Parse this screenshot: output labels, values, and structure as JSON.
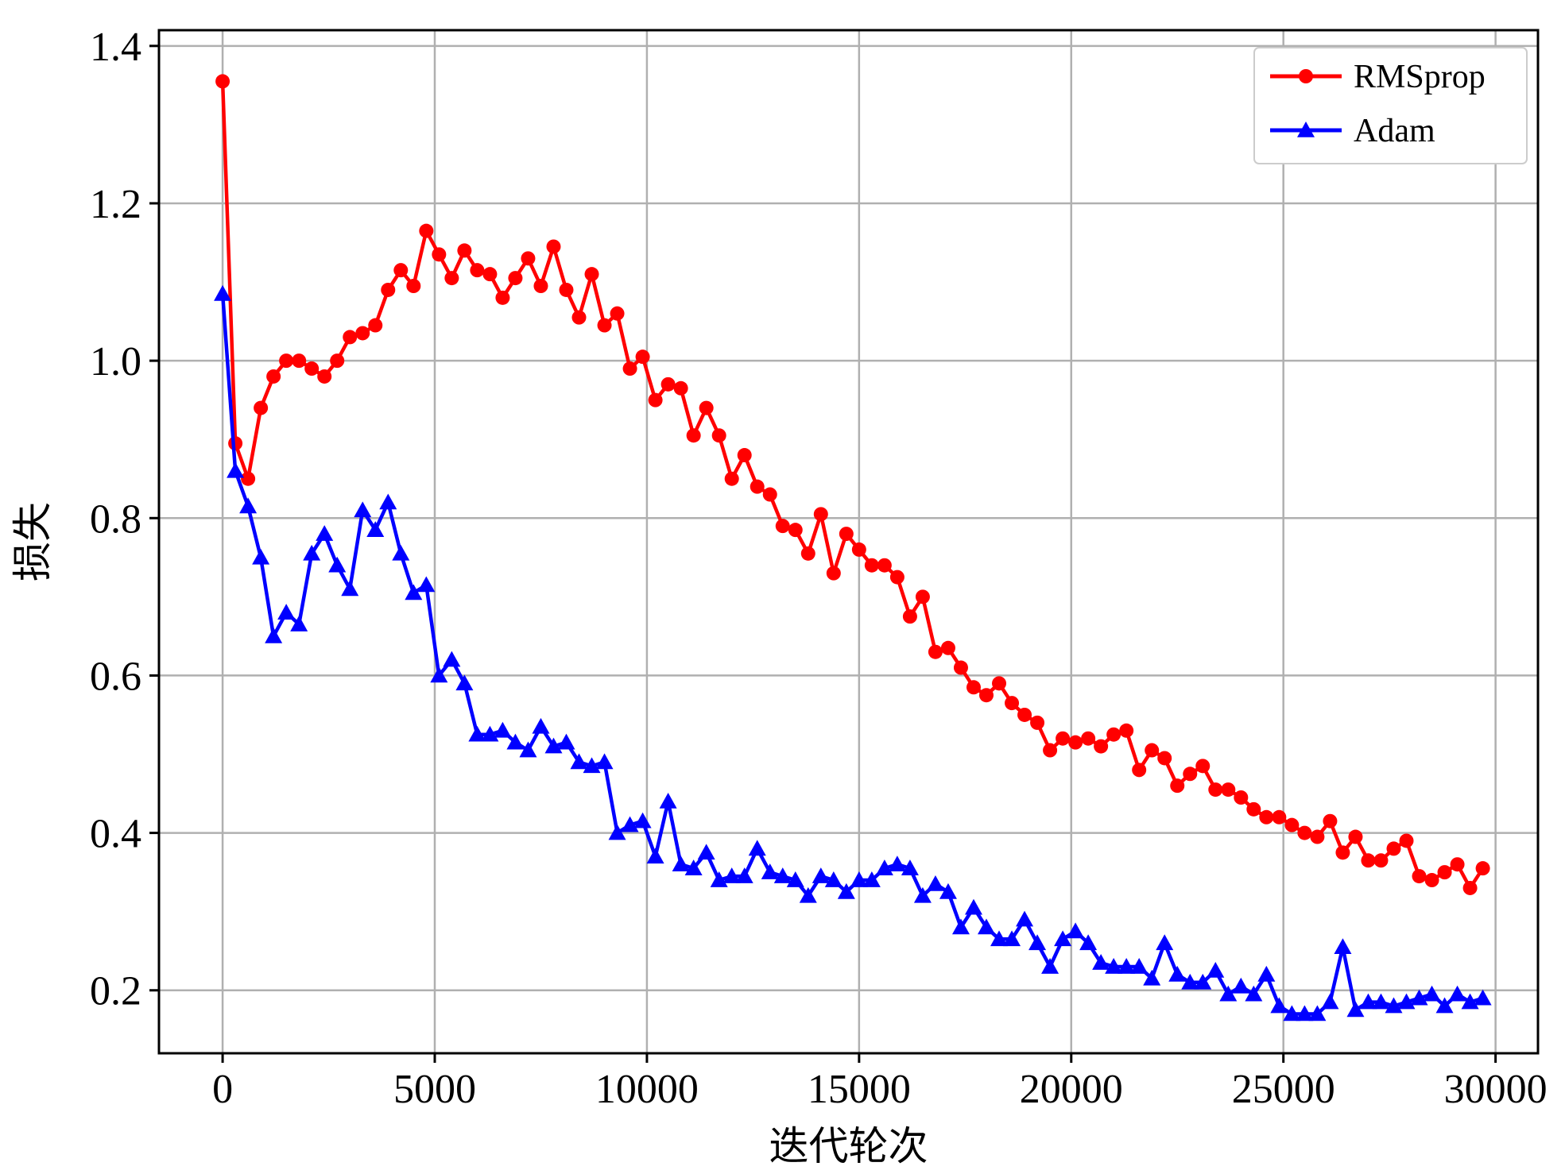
{
  "chart_data": {
    "type": "line",
    "title": "",
    "xlabel": "迭代轮次",
    "ylabel": "损失",
    "xlim": [
      -1500,
      31000
    ],
    "ylim": [
      0.12,
      1.42
    ],
    "xticks": [
      0,
      5000,
      10000,
      15000,
      20000,
      25000,
      30000
    ],
    "xtick_labels": [
      "0",
      "5000",
      "10000",
      "15000",
      "20000",
      "25000",
      "30000"
    ],
    "yticks": [
      0.2,
      0.4,
      0.6,
      0.8,
      1.0,
      1.2,
      1.4
    ],
    "ytick_labels": [
      "0.2",
      "0.4",
      "0.6",
      "0.8",
      "1.0",
      "1.2",
      "1.4"
    ],
    "grid": true,
    "legend_position": "top-right",
    "series": [
      {
        "name": "RMSprop",
        "color": "#ff0000",
        "marker": "circle",
        "points": [
          [
            0,
            1.355
          ],
          [
            300,
            0.895
          ],
          [
            600,
            0.85
          ],
          [
            900,
            0.94
          ],
          [
            1200,
            0.98
          ],
          [
            1500,
            1.0
          ],
          [
            1800,
            1.0
          ],
          [
            2100,
            0.99
          ],
          [
            2400,
            0.98
          ],
          [
            2700,
            1.0
          ],
          [
            3000,
            1.03
          ],
          [
            3300,
            1.035
          ],
          [
            3600,
            1.045
          ],
          [
            3900,
            1.09
          ],
          [
            4200,
            1.115
          ],
          [
            4500,
            1.095
          ],
          [
            4800,
            1.165
          ],
          [
            5100,
            1.135
          ],
          [
            5400,
            1.105
          ],
          [
            5700,
            1.14
          ],
          [
            6000,
            1.115
          ],
          [
            6300,
            1.11
          ],
          [
            6600,
            1.08
          ],
          [
            6900,
            1.105
          ],
          [
            7200,
            1.13
          ],
          [
            7500,
            1.095
          ],
          [
            7800,
            1.145
          ],
          [
            8100,
            1.09
          ],
          [
            8400,
            1.055
          ],
          [
            8700,
            1.11
          ],
          [
            9000,
            1.045
          ],
          [
            9300,
            1.06
          ],
          [
            9600,
            0.99
          ],
          [
            9900,
            1.005
          ],
          [
            10200,
            0.95
          ],
          [
            10500,
            0.97
          ],
          [
            10800,
            0.965
          ],
          [
            11100,
            0.905
          ],
          [
            11400,
            0.94
          ],
          [
            11700,
            0.905
          ],
          [
            12000,
            0.85
          ],
          [
            12300,
            0.88
          ],
          [
            12600,
            0.84
          ],
          [
            12900,
            0.83
          ],
          [
            13200,
            0.79
          ],
          [
            13500,
            0.785
          ],
          [
            13800,
            0.755
          ],
          [
            14100,
            0.805
          ],
          [
            14400,
            0.73
          ],
          [
            14700,
            0.78
          ],
          [
            15000,
            0.76
          ],
          [
            15300,
            0.74
          ],
          [
            15600,
            0.74
          ],
          [
            15900,
            0.725
          ],
          [
            16200,
            0.675
          ],
          [
            16500,
            0.7
          ],
          [
            16800,
            0.63
          ],
          [
            17100,
            0.635
          ],
          [
            17400,
            0.61
          ],
          [
            17700,
            0.585
          ],
          [
            18000,
            0.575
          ],
          [
            18300,
            0.59
          ],
          [
            18600,
            0.565
          ],
          [
            18900,
            0.55
          ],
          [
            19200,
            0.54
          ],
          [
            19500,
            0.505
          ],
          [
            19800,
            0.52
          ],
          [
            20100,
            0.515
          ],
          [
            20400,
            0.52
          ],
          [
            20700,
            0.51
          ],
          [
            21000,
            0.525
          ],
          [
            21300,
            0.53
          ],
          [
            21600,
            0.48
          ],
          [
            21900,
            0.505
          ],
          [
            22200,
            0.495
          ],
          [
            22500,
            0.46
          ],
          [
            22800,
            0.475
          ],
          [
            23100,
            0.485
          ],
          [
            23400,
            0.455
          ],
          [
            23700,
            0.455
          ],
          [
            24000,
            0.445
          ],
          [
            24300,
            0.43
          ],
          [
            24600,
            0.42
          ],
          [
            24900,
            0.42
          ],
          [
            25200,
            0.41
          ],
          [
            25500,
            0.4
          ],
          [
            25800,
            0.395
          ],
          [
            26100,
            0.415
          ],
          [
            26400,
            0.375
          ],
          [
            26700,
            0.395
          ],
          [
            27000,
            0.365
          ],
          [
            27300,
            0.365
          ],
          [
            27600,
            0.38
          ],
          [
            27900,
            0.39
          ],
          [
            28200,
            0.345
          ],
          [
            28500,
            0.34
          ],
          [
            28800,
            0.35
          ],
          [
            29100,
            0.36
          ],
          [
            29400,
            0.33
          ],
          [
            29700,
            0.355
          ]
        ]
      },
      {
        "name": "Adam",
        "color": "#0000ff",
        "marker": "triangle",
        "points": [
          [
            0,
            1.085
          ],
          [
            300,
            0.86
          ],
          [
            600,
            0.815
          ],
          [
            900,
            0.75
          ],
          [
            1200,
            0.65
          ],
          [
            1500,
            0.68
          ],
          [
            1800,
            0.665
          ],
          [
            2100,
            0.755
          ],
          [
            2400,
            0.78
          ],
          [
            2700,
            0.74
          ],
          [
            3000,
            0.71
          ],
          [
            3300,
            0.81
          ],
          [
            3600,
            0.785
          ],
          [
            3900,
            0.82
          ],
          [
            4200,
            0.755
          ],
          [
            4500,
            0.705
          ],
          [
            4800,
            0.715
          ],
          [
            5100,
            0.6
          ],
          [
            5400,
            0.62
          ],
          [
            5700,
            0.59
          ],
          [
            6000,
            0.525
          ],
          [
            6300,
            0.525
          ],
          [
            6600,
            0.53
          ],
          [
            6900,
            0.515
          ],
          [
            7200,
            0.505
          ],
          [
            7500,
            0.535
          ],
          [
            7800,
            0.51
          ],
          [
            8100,
            0.515
          ],
          [
            8400,
            0.49
          ],
          [
            8700,
            0.485
          ],
          [
            9000,
            0.49
          ],
          [
            9300,
            0.4
          ],
          [
            9600,
            0.41
          ],
          [
            9900,
            0.415
          ],
          [
            10200,
            0.37
          ],
          [
            10500,
            0.44
          ],
          [
            10800,
            0.36
          ],
          [
            11100,
            0.355
          ],
          [
            11400,
            0.375
          ],
          [
            11700,
            0.34
          ],
          [
            12000,
            0.345
          ],
          [
            12300,
            0.345
          ],
          [
            12600,
            0.38
          ],
          [
            12900,
            0.35
          ],
          [
            13200,
            0.345
          ],
          [
            13500,
            0.34
          ],
          [
            13800,
            0.32
          ],
          [
            14100,
            0.345
          ],
          [
            14400,
            0.34
          ],
          [
            14700,
            0.325
          ],
          [
            15000,
            0.34
          ],
          [
            15300,
            0.34
          ],
          [
            15600,
            0.355
          ],
          [
            15900,
            0.36
          ],
          [
            16200,
            0.355
          ],
          [
            16500,
            0.32
          ],
          [
            16800,
            0.335
          ],
          [
            17100,
            0.325
          ],
          [
            17400,
            0.28
          ],
          [
            17700,
            0.305
          ],
          [
            18000,
            0.28
          ],
          [
            18300,
            0.265
          ],
          [
            18600,
            0.265
          ],
          [
            18900,
            0.29
          ],
          [
            19200,
            0.26
          ],
          [
            19500,
            0.23
          ],
          [
            19800,
            0.265
          ],
          [
            20100,
            0.275
          ],
          [
            20400,
            0.26
          ],
          [
            20700,
            0.235
          ],
          [
            21000,
            0.23
          ],
          [
            21300,
            0.23
          ],
          [
            21600,
            0.23
          ],
          [
            21900,
            0.215
          ],
          [
            22200,
            0.26
          ],
          [
            22500,
            0.22
          ],
          [
            22800,
            0.21
          ],
          [
            23100,
            0.21
          ],
          [
            23400,
            0.225
          ],
          [
            23700,
            0.195
          ],
          [
            24000,
            0.205
          ],
          [
            24300,
            0.195
          ],
          [
            24600,
            0.22
          ],
          [
            24900,
            0.18
          ],
          [
            25200,
            0.17
          ],
          [
            25500,
            0.17
          ],
          [
            25800,
            0.17
          ],
          [
            26100,
            0.185
          ],
          [
            26400,
            0.255
          ],
          [
            26700,
            0.175
          ],
          [
            27000,
            0.185
          ],
          [
            27300,
            0.185
          ],
          [
            27600,
            0.18
          ],
          [
            27900,
            0.185
          ],
          [
            28200,
            0.19
          ],
          [
            28500,
            0.195
          ],
          [
            28800,
            0.18
          ],
          [
            29100,
            0.195
          ],
          [
            29400,
            0.185
          ],
          [
            29700,
            0.19
          ]
        ]
      }
    ]
  }
}
